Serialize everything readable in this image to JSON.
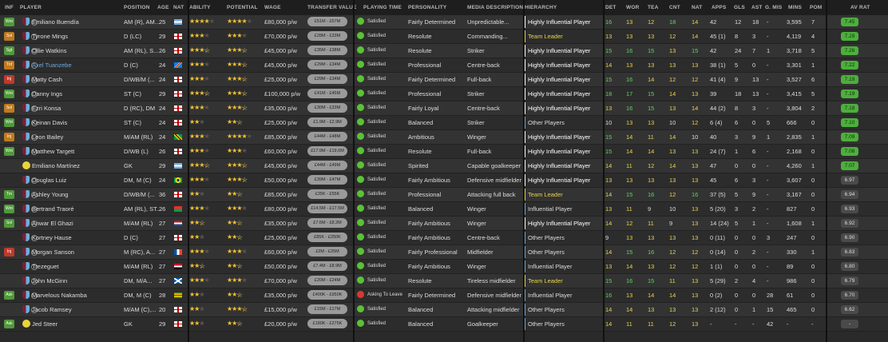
{
  "header": [
    "INF",
    "PLAYER",
    "POSITION",
    "AGE",
    "NAT",
    "ABILITY",
    "POTENTIAL",
    "WAGE",
    "TRANSFER VALUE",
    "PLAYING TIME",
    "PERSONALITY",
    "MEDIA DESCRIPTION",
    "HIERARCHY",
    "DET",
    "WOR",
    "TEA",
    "CNT",
    "NAT",
    "APPS",
    "GLS",
    "AST",
    "G. MIS",
    "MINS",
    "POM",
    "AV RAT"
  ],
  "players": [
    {
      "inf": "Wnt",
      "inf_color": "#4f9a3a",
      "kit": "club",
      "name": "Emiliano Buendía",
      "name_color": "#dddddd",
      "pos": "AM (R), AM...",
      "age": "25",
      "nat": "ar",
      "ability": 4,
      "potential": 4,
      "wage": "£80,000 p/w",
      "tv": "£51M - £57M",
      "pt": "Satisfied",
      "pt_face": "green",
      "personality": "Fairly Determined",
      "media": "Unpredictable...",
      "hier": "Highly Influential Player",
      "hier_color": "#ffffff",
      "det": "16",
      "det_c": "g",
      "wor": "13",
      "wor_c": "y",
      "tea": "12",
      "tea_c": "y",
      "cnt": "18",
      "cnt_c": "g",
      "natv": "14",
      "natv_c": "y",
      "apps": "42",
      "gls": "12",
      "ast": "18",
      "gmis": "-",
      "mins": "3,595",
      "pom": "7",
      "avrat": "7.45",
      "av_color": "#4caf3c"
    },
    {
      "inf": "Sol",
      "inf_color": "#c07a1e",
      "kit": "club",
      "name": "Tyrone Mings",
      "name_color": "#dddddd",
      "pos": "D (LC)",
      "age": "29",
      "nat": "en",
      "ability": 3,
      "potential": 3,
      "wage": "£70,000 p/w",
      "tv": "£28M - £33M",
      "pt": "Satisfied",
      "pt_face": "green",
      "personality": "Resolute",
      "media": "Commanding...",
      "hier": "Team Leader",
      "hier_color": "#e8d24a",
      "det": "13",
      "det_c": "y",
      "wor": "13",
      "wor_c": "y",
      "tea": "13",
      "tea_c": "y",
      "cnt": "12",
      "cnt_c": "y",
      "natv": "14",
      "natv_c": "y",
      "apps": "45 (1)",
      "gls": "8",
      "ast": "3",
      "gmis": "-",
      "mins": "4,119",
      "pom": "4",
      "avrat": "7.29",
      "av_color": "#4caf3c"
    },
    {
      "inf": "Sgt",
      "inf_color": "#4f9a3a",
      "kit": "club",
      "name": "Ollie Watkins",
      "name_color": "#dddddd",
      "pos": "AM (RL), S...",
      "age": "26",
      "nat": "en",
      "ability": 3.5,
      "potential": 3.5,
      "wage": "£45,000 p/w",
      "tv": "£35M - £38M",
      "pt": "Satisfied",
      "pt_face": "green",
      "personality": "Resolute",
      "media": "Striker",
      "hier": "Highly Influential Player",
      "hier_color": "#ffffff",
      "det": "15",
      "det_c": "g",
      "wor": "16",
      "wor_c": "g",
      "tea": "15",
      "tea_c": "g",
      "cnt": "13",
      "cnt_c": "y",
      "natv": "15",
      "natv_c": "g",
      "apps": "42",
      "gls": "24",
      "ast": "7",
      "gmis": "1",
      "mins": "3,718",
      "pom": "5",
      "avrat": "7.26",
      "av_color": "#4caf3c"
    },
    {
      "inf": "Tnf",
      "inf_color": "#c07a1e",
      "kit": "club",
      "name": "Axel Tuanzebe",
      "name_color": "#6ea8d8",
      "pos": "D (C)",
      "age": "24",
      "nat": "cd",
      "ability": 3,
      "potential": 3.5,
      "wage": "£45,000 p/w",
      "tv": "£29M - £34M",
      "pt": "Satisfied",
      "pt_face": "green",
      "personality": "Professional",
      "media": "Centre-back",
      "hier": "Highly Influential Player",
      "hier_color": "#ffffff",
      "det": "14",
      "det_c": "y",
      "wor": "13",
      "wor_c": "y",
      "tea": "13",
      "tea_c": "y",
      "cnt": "13",
      "cnt_c": "y",
      "natv": "13",
      "natv_c": "y",
      "apps": "38 (1)",
      "gls": "5",
      "ast": "0",
      "gmis": "-",
      "mins": "3,301",
      "pom": "1",
      "avrat": "7.22",
      "av_color": "#4caf3c"
    },
    {
      "inf": "Inj",
      "inf_color": "#c0392b",
      "kit": "club",
      "name": "Matty Cash",
      "name_color": "#dddddd",
      "pos": "D/WB/M (...",
      "age": "24",
      "nat": "en",
      "ability": 3,
      "potential": 3.5,
      "wage": "£25,000 p/w",
      "tv": "£29M - £34M",
      "pt": "Satisfied",
      "pt_face": "green",
      "personality": "Fairly Determined",
      "media": "Full-back",
      "hier": "Highly Influential Player",
      "hier_color": "#ffffff",
      "det": "15",
      "det_c": "g",
      "wor": "16",
      "wor_c": "g",
      "tea": "14",
      "tea_c": "y",
      "cnt": "12",
      "cnt_c": "y",
      "natv": "12",
      "natv_c": "y",
      "apps": "41 (4)",
      "gls": "9",
      "ast": "13",
      "gmis": "-",
      "mins": "3,527",
      "pom": "6",
      "avrat": "7.19",
      "av_color": "#4caf3c"
    },
    {
      "inf": "Wnt",
      "inf_color": "#4f9a3a",
      "kit": "club",
      "name": "Danny Ings",
      "name_color": "#dddddd",
      "pos": "ST (C)",
      "age": "29",
      "nat": "en",
      "ability": 3.5,
      "potential": 3.5,
      "wage": "£100,000 p/w",
      "tv": "£41M - £45M",
      "pt": "Satisfied",
      "pt_face": "green",
      "personality": "Professional",
      "media": "Striker",
      "hier": "Highly Influential Player",
      "hier_color": "#ffffff",
      "det": "18",
      "det_c": "g",
      "wor": "17",
      "wor_c": "g",
      "tea": "15",
      "tea_c": "g",
      "cnt": "14",
      "cnt_c": "y",
      "natv": "13",
      "natv_c": "y",
      "apps": "39",
      "gls": "18",
      "ast": "13",
      "gmis": "-",
      "mins": "3,415",
      "pom": "5",
      "avrat": "7.19",
      "av_color": "#4caf3c"
    },
    {
      "inf": "Sol",
      "inf_color": "#c07a1e",
      "kit": "club",
      "name": "Ezri Konsa",
      "name_color": "#dddddd",
      "pos": "D (RC), DM",
      "age": "24",
      "nat": "en",
      "ability": 3,
      "potential": 3.5,
      "wage": "£35,000 p/w",
      "tv": "£30M - £33M",
      "pt": "Satisfied",
      "pt_face": "green",
      "personality": "Fairly Loyal",
      "media": "Centre-back",
      "hier": "Highly Influential Player",
      "hier_color": "#ffffff",
      "det": "13",
      "det_c": "y",
      "wor": "16",
      "wor_c": "g",
      "tea": "15",
      "tea_c": "g",
      "cnt": "13",
      "cnt_c": "y",
      "natv": "14",
      "natv_c": "y",
      "apps": "44 (2)",
      "gls": "8",
      "ast": "3",
      "gmis": "-",
      "mins": "3,804",
      "pom": "2",
      "avrat": "7.18",
      "av_color": "#4caf3c"
    },
    {
      "inf": "Wnt",
      "inf_color": "#4f9a3a",
      "kit": "club",
      "name": "Keinan Davis",
      "name_color": "#dddddd",
      "pos": "ST (C)",
      "age": "24",
      "nat": "en",
      "ability": 2,
      "potential": 2.5,
      "wage": "£25,000 p/w",
      "tv": "£1.9M - £2.9M",
      "pt": "Satisfied",
      "pt_face": "green",
      "personality": "Balanced",
      "media": "Striker",
      "hier": "Other Players",
      "hier_color": "#dddddd",
      "det": "10",
      "det_c": "w",
      "wor": "13",
      "wor_c": "y",
      "tea": "13",
      "tea_c": "y",
      "cnt": "10",
      "cnt_c": "w",
      "natv": "12",
      "natv_c": "y",
      "apps": "6 (4)",
      "gls": "6",
      "ast": "0",
      "gmis": "5",
      "mins": "666",
      "pom": "0",
      "avrat": "7.10",
      "av_color": "#4caf3c"
    },
    {
      "inf": "Inj",
      "inf_color": "#c07a1e",
      "kit": "club",
      "name": "Leon Bailey",
      "name_color": "#dddddd",
      "pos": "M/AM (RL)",
      "age": "24",
      "nat": "jm",
      "ability": 3,
      "potential": 4,
      "wage": "£85,000 p/w",
      "tv": "£44M - £48M",
      "pt": "Satisfied",
      "pt_face": "green",
      "personality": "Ambitious",
      "media": "Winger",
      "hier": "Highly Influential Player",
      "hier_color": "#ffffff",
      "det": "15",
      "det_c": "g",
      "wor": "14",
      "wor_c": "y",
      "tea": "11",
      "tea_c": "y",
      "cnt": "14",
      "cnt_c": "y",
      "natv": "10",
      "natv_c": "w",
      "apps": "40",
      "gls": "3",
      "ast": "9",
      "gmis": "1",
      "mins": "2,835",
      "pom": "1",
      "avrat": "7.09",
      "av_color": "#4caf3c"
    },
    {
      "inf": "Wnt",
      "inf_color": "#4f9a3a",
      "kit": "club",
      "name": "Matthew Targett",
      "name_color": "#dddddd",
      "pos": "D/WB (L)",
      "age": "26",
      "nat": "en",
      "ability": 3,
      "potential": 3,
      "wage": "£60,000 p/w",
      "tv": "£17.9M - £19.6M",
      "pt": "Satisfied",
      "pt_face": "green",
      "personality": "Resolute",
      "media": "Full-back",
      "hier": "Highly Influential Player",
      "hier_color": "#ffffff",
      "det": "15",
      "det_c": "g",
      "wor": "14",
      "wor_c": "y",
      "tea": "14",
      "tea_c": "y",
      "cnt": "13",
      "cnt_c": "y",
      "natv": "13",
      "natv_c": "y",
      "apps": "24 (7)",
      "gls": "1",
      "ast": "6",
      "gmis": "-",
      "mins": "2,168",
      "pom": "0",
      "avrat": "7.08",
      "av_color": "#4caf3c"
    },
    {
      "inf": "",
      "inf_color": "",
      "kit": "ball",
      "name": "Emiliano Martínez",
      "name_color": "#dddddd",
      "pos": "GK",
      "age": "29",
      "nat": "ar",
      "ability": 3.5,
      "potential": 3.5,
      "wage": "£45,000 p/w",
      "tv": "£44M - £49M",
      "pt": "Satisfied",
      "pt_face": "green",
      "personality": "Spirited",
      "media": "Capable goalkeeper",
      "hier": "Highly Influential Player",
      "hier_color": "#ffffff",
      "det": "14",
      "det_c": "y",
      "wor": "11",
      "wor_c": "y",
      "tea": "12",
      "tea_c": "y",
      "cnt": "14",
      "cnt_c": "y",
      "natv": "13",
      "natv_c": "y",
      "apps": "47",
      "gls": "0",
      "ast": "0",
      "gmis": "-",
      "mins": "4,260",
      "pom": "1",
      "avrat": "7.07",
      "av_color": "#4caf3c"
    },
    {
      "inf": "",
      "inf_color": "",
      "kit": "club",
      "name": "Douglas Luiz",
      "name_color": "#dddddd",
      "pos": "DM, M (C)",
      "age": "24",
      "nat": "br",
      "ability": 3,
      "potential": 3.5,
      "wage": "£50,000 p/w",
      "tv": "£39M - £47M",
      "pt": "Satisfied",
      "pt_face": "green",
      "personality": "Fairly Ambitious",
      "media": "Defensive midfielder",
      "hier": "Highly Influential Player",
      "hier_color": "#ffffff",
      "det": "13",
      "det_c": "y",
      "wor": "13",
      "wor_c": "y",
      "tea": "13",
      "tea_c": "y",
      "cnt": "13",
      "cnt_c": "y",
      "natv": "13",
      "natv_c": "y",
      "apps": "45",
      "gls": "6",
      "ast": "3",
      "gmis": "-",
      "mins": "3,607",
      "pom": "0",
      "avrat": "6.97",
      "av_color": "#4a4a4a"
    },
    {
      "inf": "Trn",
      "inf_color": "#4f9a3a",
      "kit": "club",
      "name": "Ashley Young",
      "name_color": "#dddddd",
      "pos": "D/WB/M (...",
      "age": "36",
      "nat": "en",
      "ability": 2,
      "potential": 2.5,
      "wage": "£85,000 p/w",
      "tv": "£35K - £55K",
      "pt": "Satisfied",
      "pt_face": "green",
      "personality": "Professional",
      "media": "Attacking full back",
      "hier": "Team Leader",
      "hier_color": "#e8d24a",
      "det": "14",
      "det_c": "y",
      "wor": "15",
      "wor_c": "g",
      "tea": "16",
      "tea_c": "g",
      "cnt": "12",
      "cnt_c": "y",
      "natv": "16",
      "natv_c": "g",
      "apps": "37 (5)",
      "gls": "5",
      "ast": "9",
      "gmis": "-",
      "mins": "3,167",
      "pom": "0",
      "avrat": "6.94",
      "av_color": "#4a4a4a"
    },
    {
      "inf": "Wnt",
      "inf_color": "#4f9a3a",
      "kit": "club",
      "name": "Bertrand Traoré",
      "name_color": "#dddddd",
      "pos": "AM (RL), ST...",
      "age": "26",
      "nat": "bf",
      "ability": 3,
      "potential": 3,
      "wage": "£80,000 p/w",
      "tv": "£14.5M - £17.5M",
      "pt": "Satisfied",
      "pt_face": "green",
      "personality": "Balanced",
      "media": "Winger",
      "hier": "Influential Player",
      "hier_color": "#dddddd",
      "det": "13",
      "det_c": "y",
      "wor": "11",
      "wor_c": "y",
      "tea": "9",
      "tea_c": "w",
      "cnt": "10",
      "cnt_c": "w",
      "natv": "13",
      "natv_c": "y",
      "apps": "5 (20)",
      "gls": "3",
      "ast": "2",
      "gmis": "-",
      "mins": "827",
      "pom": "0",
      "avrat": "6.93",
      "av_color": "#4a4a4a"
    },
    {
      "inf": "Sol",
      "inf_color": "#4f9a3a",
      "kit": "club",
      "name": "Anwar El Ghazi",
      "name_color": "#dddddd",
      "pos": "M/AM (RL)",
      "age": "27",
      "nat": "nl",
      "ability": 2.5,
      "potential": 2.5,
      "wage": "£35,000 p/w",
      "tv": "£7.6M - £8.2M",
      "pt": "Satisfied",
      "pt_face": "green",
      "personality": "Fairly Ambitious",
      "media": "Winger",
      "hier": "Highly Influential Player",
      "hier_color": "#ffffff",
      "det": "14",
      "det_c": "y",
      "wor": "12",
      "wor_c": "y",
      "tea": "11",
      "tea_c": "y",
      "cnt": "9",
      "cnt_c": "w",
      "natv": "13",
      "natv_c": "y",
      "apps": "14 (24)",
      "gls": "5",
      "ast": "1",
      "gmis": "-",
      "mins": "1,608",
      "pom": "1",
      "avrat": "6.92",
      "av_color": "#4a4a4a"
    },
    {
      "inf": "",
      "inf_color": "",
      "kit": "club",
      "name": "Kortney Hause",
      "name_color": "#dddddd",
      "pos": "D (C)",
      "age": "27",
      "nat": "en",
      "ability": 2,
      "potential": 2.5,
      "wage": "£25,000 p/w",
      "tv": "£85K - £250K",
      "pt": "Satisfied",
      "pt_face": "green",
      "personality": "Fairly Ambitious",
      "media": "Centre-back",
      "hier": "Other Players",
      "hier_color": "#dddddd",
      "det": "9",
      "det_c": "w",
      "wor": "13",
      "wor_c": "y",
      "tea": "13",
      "tea_c": "y",
      "cnt": "13",
      "cnt_c": "y",
      "natv": "13",
      "natv_c": "y",
      "apps": "0 (11)",
      "gls": "0",
      "ast": "0",
      "gmis": "3",
      "mins": "247",
      "pom": "0",
      "avrat": "6.90",
      "av_color": "#4a4a4a"
    },
    {
      "inf": "Inj",
      "inf_color": "#c0392b",
      "kit": "club",
      "name": "Morgan Sanson",
      "name_color": "#dddddd",
      "pos": "M (RC), A...",
      "age": "27",
      "nat": "fr",
      "ability": 3,
      "potential": 3,
      "wage": "£60,000 p/w",
      "tv": "£2M - £25M",
      "pt": "Satisfied",
      "pt_face": "green",
      "personality": "Fairly Professional",
      "media": "Midfielder",
      "hier": "Other Players",
      "hier_color": "#dddddd",
      "det": "14",
      "det_c": "y",
      "wor": "15",
      "wor_c": "g",
      "tea": "16",
      "tea_c": "g",
      "cnt": "12",
      "cnt_c": "y",
      "natv": "12",
      "natv_c": "y",
      "apps": "0 (14)",
      "gls": "0",
      "ast": "2",
      "gmis": "-",
      "mins": "330",
      "pom": "1",
      "avrat": "6.83",
      "av_color": "#4a4a4a"
    },
    {
      "inf": "",
      "inf_color": "",
      "kit": "club",
      "name": "Trezeguet",
      "name_color": "#dddddd",
      "pos": "M/AM (RL)",
      "age": "27",
      "nat": "eg",
      "ability": 2.5,
      "potential": 2.5,
      "wage": "£50,000 p/w",
      "tv": "£7.4M - £8.9M",
      "pt": "Satisfied",
      "pt_face": "green",
      "personality": "Fairly Ambitious",
      "media": "Winger",
      "hier": "Influential Player",
      "hier_color": "#dddddd",
      "det": "13",
      "det_c": "y",
      "wor": "14",
      "wor_c": "y",
      "tea": "13",
      "tea_c": "y",
      "cnt": "12",
      "cnt_c": "y",
      "natv": "12",
      "natv_c": "y",
      "apps": "1 (1)",
      "gls": "0",
      "ast": "0",
      "gmis": "-",
      "mins": "89",
      "pom": "0",
      "avrat": "6.80",
      "av_color": "#4a4a4a"
    },
    {
      "inf": "",
      "inf_color": "",
      "kit": "club",
      "name": "John McGinn",
      "name_color": "#dddddd",
      "pos": "DM, M/A...",
      "age": "27",
      "nat": "sc",
      "ability": 3,
      "potential": 3,
      "wage": "£70,000 p/w",
      "tv": "£20M - £24M",
      "pt": "Satisfied",
      "pt_face": "green",
      "personality": "Resolute",
      "media": "Tireless midfielder",
      "hier": "Team Leader",
      "hier_color": "#e8d24a",
      "det": "15",
      "det_c": "g",
      "wor": "16",
      "wor_c": "g",
      "tea": "15",
      "tea_c": "g",
      "cnt": "11",
      "cnt_c": "y",
      "natv": "13",
      "natv_c": "y",
      "apps": "5 (29)",
      "gls": "2",
      "ast": "4",
      "gmis": "-",
      "mins": "986",
      "pom": "0",
      "avrat": "6.79",
      "av_color": "#4a4a4a"
    },
    {
      "inf": "Ask",
      "inf_color": "#4f9a3a",
      "kit": "club",
      "name": "Marvelous Nakamba",
      "name_color": "#dddddd",
      "pos": "DM, M (C)",
      "age": "28",
      "nat": "zw",
      "ability": 2,
      "potential": 2.5,
      "wage": "£35,000 p/w",
      "tv": "£400K - £950K",
      "pt": "Asking To Leave",
      "pt_face": "red",
      "personality": "Fairly Determined",
      "media": "Defensive midfielder",
      "hier": "Influential Player",
      "hier_color": "#dddddd",
      "det": "16",
      "det_c": "g",
      "wor": "13",
      "wor_c": "y",
      "tea": "14",
      "tea_c": "y",
      "cnt": "14",
      "cnt_c": "y",
      "natv": "13",
      "natv_c": "y",
      "apps": "0 (2)",
      "gls": "0",
      "ast": "0",
      "gmis": "28",
      "mins": "61",
      "pom": "0",
      "avrat": "6.70",
      "av_color": "#4a4a4a"
    },
    {
      "inf": "",
      "inf_color": "",
      "kit": "club",
      "name": "Jacob Ramsey",
      "name_color": "#dddddd",
      "pos": "M/AM (C),...",
      "age": "20",
      "nat": "en",
      "ability": 2,
      "potential": 3.5,
      "wage": "£15,000 p/w",
      "tv": "£15M - £17M",
      "pt": "Satisfied",
      "pt_face": "green",
      "personality": "Balanced",
      "media": "Attacking midfielder",
      "hier": "Other Players",
      "hier_color": "#dddddd",
      "det": "14",
      "det_c": "y",
      "wor": "14",
      "wor_c": "y",
      "tea": "13",
      "tea_c": "y",
      "cnt": "13",
      "cnt_c": "y",
      "natv": "13",
      "natv_c": "y",
      "apps": "2 (12)",
      "gls": "0",
      "ast": "1",
      "gmis": "15",
      "mins": "465",
      "pom": "0",
      "avrat": "6.62",
      "av_color": "#4a4a4a"
    },
    {
      "inf": "Ask",
      "inf_color": "#4f9a3a",
      "kit": "ball",
      "name": "Jed Steer",
      "name_color": "#dddddd",
      "pos": "GK",
      "age": "29",
      "nat": "en",
      "ability": 2,
      "potential": 2.5,
      "wage": "£20,000 p/w",
      "tv": "£180K - £275K",
      "pt": "Satisfied",
      "pt_face": "green",
      "personality": "Balanced",
      "media": "Goalkeeper",
      "hier": "Other Players",
      "hier_color": "#dddddd",
      "det": "14",
      "det_c": "y",
      "wor": "11",
      "wor_c": "y",
      "tea": "11",
      "tea_c": "y",
      "cnt": "12",
      "cnt_c": "y",
      "natv": "13",
      "natv_c": "y",
      "apps": "-",
      "gls": "-",
      "ast": "-",
      "gmis": "42",
      "mins": "-",
      "pom": "-",
      "avrat": "-",
      "av_color": "#4a4a4a"
    }
  ]
}
